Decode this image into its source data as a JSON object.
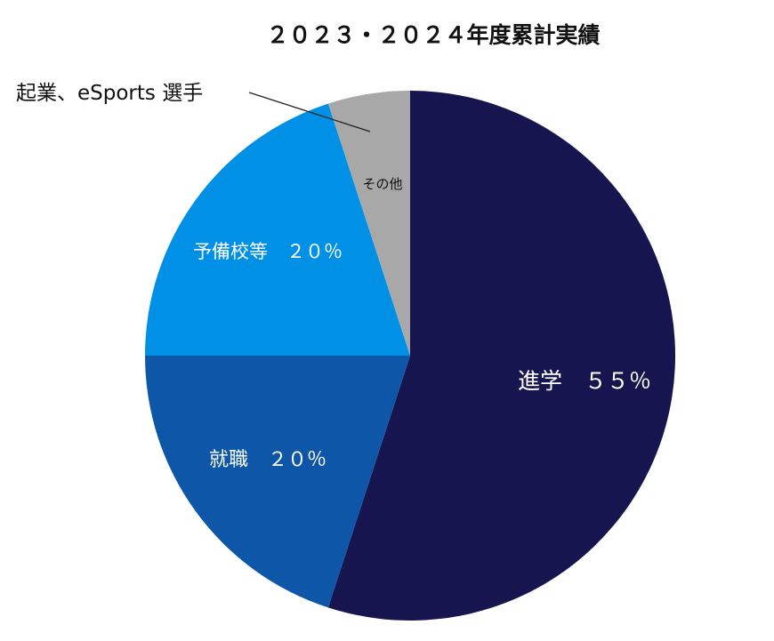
{
  "chart_data": {
    "type": "pie",
    "title": "２０２３・２０２４年度累計実績",
    "start": "top",
    "direction": "clockwise",
    "slices": [
      {
        "label": "進学　５５％",
        "value": 55,
        "color": "#16154f"
      },
      {
        "label": "就職　２０％",
        "value": 20,
        "color": "#0d56a8"
      },
      {
        "label": "予備校等　２０％",
        "value": 20,
        "color": "#0090e6"
      },
      {
        "label": "その他",
        "value": 5,
        "color": "#a8a8a8"
      }
    ],
    "callout": "起業、eSports 選手"
  }
}
